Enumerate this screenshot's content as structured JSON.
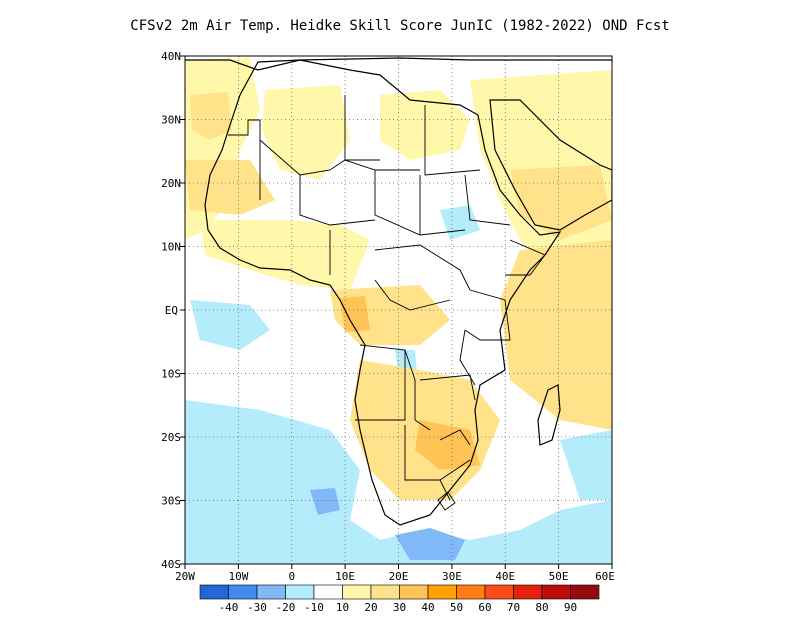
{
  "title": "CFSv2  2m Air Temp. Heidke Skill Score JunIC (1982-2022) OND Fcst",
  "map": {
    "lat_labels": [
      "40N",
      "30N",
      "20N",
      "10N",
      "EQ",
      "10S",
      "20S",
      "30S",
      "40S"
    ],
    "lon_labels": [
      "20W",
      "10W",
      "0",
      "10E",
      "20E",
      "30E",
      "40E",
      "50E",
      "60E"
    ],
    "extent": {
      "lon_min": -20,
      "lon_max": 60,
      "lat_min": -40,
      "lat_max": 40
    },
    "grid": "dotted"
  },
  "colorbar": {
    "labels": [
      "-40",
      "-30",
      "-20",
      "-10",
      "10",
      "20",
      "30",
      "40",
      "50",
      "60",
      "70",
      "80",
      "90"
    ],
    "colors": [
      "#2466d8",
      "#3f8cee",
      "#80b8f8",
      "#b4ecfb",
      "#ffffff",
      "#fff7aa",
      "#ffe28a",
      "#ffc455",
      "#ffa200",
      "#ff7d12",
      "#ff4a1a",
      "#e3230b",
      "#c00b0b",
      "#950a0a"
    ]
  },
  "shading_colors": {
    "light_yellow": "#fff7aa",
    "yellow": "#ffe28a",
    "orange": "#ffc455",
    "light_blue": "#b4ecfb",
    "blue": "#80b8f8"
  }
}
